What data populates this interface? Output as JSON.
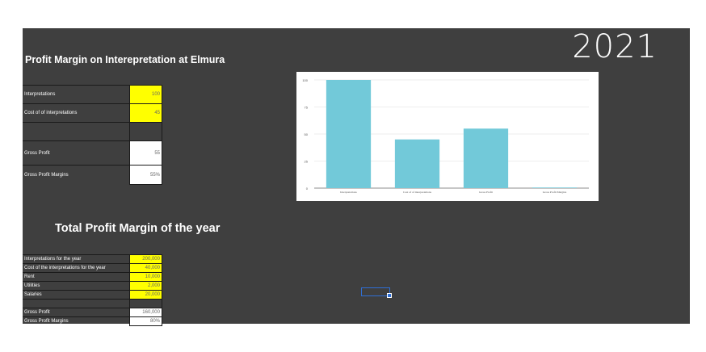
{
  "sheet": {
    "year": "2021",
    "title1": "Profit Margin on Interepretation at Elmura",
    "title2": "Total Profit Margin of the year"
  },
  "table1": {
    "rows": [
      {
        "label": "Interpretations",
        "value": "100"
      },
      {
        "label": "Cost of of interpretations",
        "value": "45"
      },
      {
        "label": "",
        "value": ""
      },
      {
        "label": "Gross Profit",
        "value": "55"
      },
      {
        "label": "Gross Profit Margins",
        "value": "55%"
      }
    ]
  },
  "table2": {
    "rows": [
      {
        "label": "Interpretations for the year",
        "value": "200,000"
      },
      {
        "label": "Cost of the interpretations for the year",
        "value": "40,000"
      },
      {
        "label": "Rent",
        "value": "10,000"
      },
      {
        "label": "Utilities",
        "value": "2,000"
      },
      {
        "label": "Salaries",
        "value": "20,000"
      },
      {
        "label": "",
        "value": ""
      },
      {
        "label": "Gross Profit",
        "value": "160,000"
      },
      {
        "label": "Gross Profit Margins",
        "value": "80%"
      }
    ]
  },
  "chart_data": {
    "type": "bar",
    "categories": [
      "Interpretations",
      "Cost of of interpretations",
      "Gross Profit",
      "Gross Profit Margins"
    ],
    "values": [
      100,
      45,
      55,
      0.55
    ],
    "title": "",
    "xlabel": "",
    "ylabel": "",
    "yticks": [
      "0",
      "25",
      "50",
      "75",
      "100"
    ],
    "ylim": [
      0,
      100
    ],
    "bar_color": "#72c9d9",
    "grid": true
  },
  "colors": {
    "sheet_bg": "#3f3f3f",
    "highlight": "#ffff00",
    "selection": "#2f6fd6"
  }
}
